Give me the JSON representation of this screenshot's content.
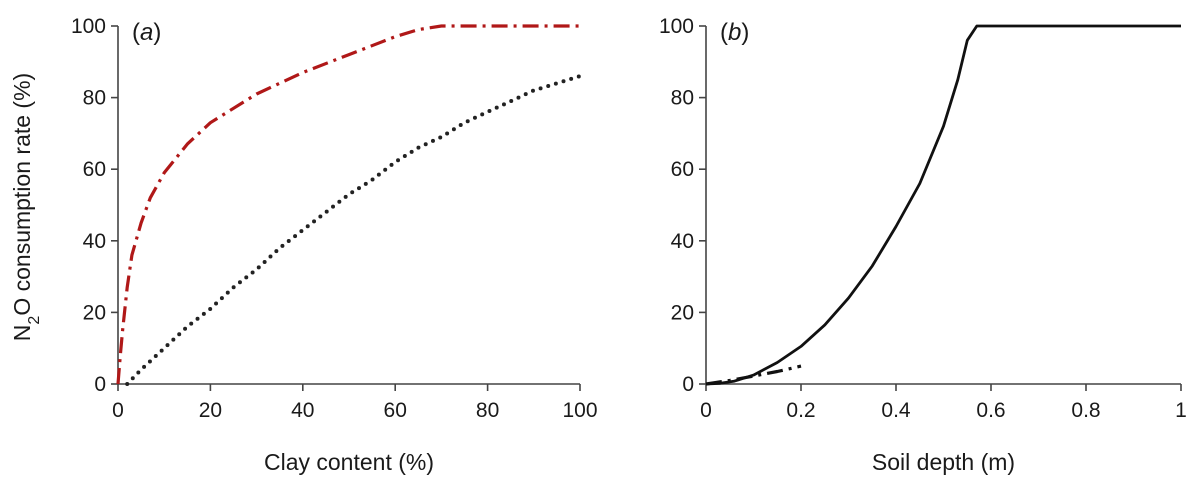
{
  "ylabel_shared": {
    "prefix": "N",
    "sub": "2",
    "suffix": "O consumption rate (%)"
  },
  "chart_data": [
    {
      "type": "line",
      "panel_label": "(a)",
      "xlabel": "Clay content (%)",
      "ylabel": "N2O consumption rate (%)",
      "xlim": [
        0,
        100
      ],
      "ylim": [
        0,
        100
      ],
      "xticks": [
        0,
        20,
        40,
        60,
        80,
        100
      ],
      "yticks": [
        0,
        20,
        40,
        60,
        80,
        100
      ],
      "grid": false,
      "series": [
        {
          "style": "dash-dot",
          "color": "#b01818",
          "x": [
            0,
            0.5,
            1,
            2,
            3,
            5,
            7,
            10,
            15,
            20,
            25,
            30,
            40,
            50,
            60,
            65,
            70,
            80,
            90,
            100
          ],
          "y": [
            0,
            8,
            15,
            27,
            36,
            45,
            52,
            59,
            67,
            73,
            77,
            81,
            87,
            92,
            97,
            99,
            100,
            100,
            100,
            100
          ]
        },
        {
          "style": "dotted",
          "color": "#222222",
          "x": [
            2,
            5,
            10,
            15,
            20,
            25,
            30,
            35,
            40,
            45,
            50,
            55,
            60,
            65,
            70,
            75,
            80,
            85,
            90,
            95,
            100
          ],
          "y": [
            0,
            4,
            10,
            16,
            21,
            27,
            32,
            38,
            43,
            48,
            53,
            57,
            62,
            66,
            69,
            73,
            76,
            79,
            82,
            84,
            86
          ]
        }
      ]
    },
    {
      "type": "line",
      "panel_label": "(b)",
      "xlabel": "Soil depth (m)",
      "ylabel": "",
      "xlim": [
        0,
        1
      ],
      "ylim": [
        0,
        100
      ],
      "xticks": [
        0,
        0.2,
        0.4,
        0.6,
        0.8,
        1
      ],
      "xtick_labels": [
        "0",
        "0.2",
        "0.4",
        "0.6",
        "0.8",
        "1"
      ],
      "yticks": [
        0,
        20,
        40,
        60,
        80,
        100
      ],
      "grid": false,
      "series": [
        {
          "style": "solid",
          "color": "#111111",
          "x": [
            0,
            0.03,
            0.06,
            0.1,
            0.15,
            0.2,
            0.25,
            0.3,
            0.35,
            0.4,
            0.45,
            0.5,
            0.53,
            0.55,
            0.57,
            0.6,
            0.7,
            0.8,
            0.9,
            1.0
          ],
          "y": [
            0,
            0.2,
            0.8,
            2.5,
            6,
            10.5,
            16.5,
            24,
            33,
            44,
            56,
            72,
            85,
            96,
            100,
            100,
            100,
            100,
            100,
            100
          ]
        },
        {
          "style": "dash-dot",
          "color": "#111111",
          "x": [
            0,
            0.05,
            0.1,
            0.15,
            0.2
          ],
          "y": [
            0,
            1,
            2.2,
            3.5,
            5
          ]
        }
      ]
    }
  ]
}
